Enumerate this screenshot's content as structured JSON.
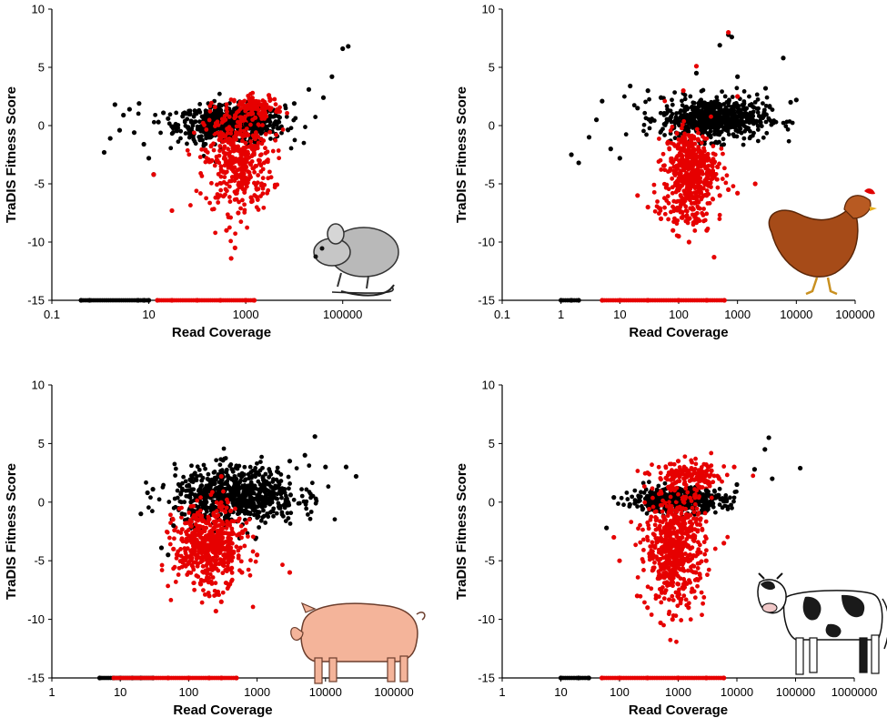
{
  "chart_data": [
    {
      "type": "scatter",
      "animal": "rat",
      "xlabel": "Read Coverage",
      "ylabel": "TraDIS Fitness Score",
      "x_scale": "log",
      "xlim": [
        0.1,
        1000000
      ],
      "x_ticks": [
        "0.1",
        "10",
        "1000",
        "100000"
      ],
      "ylim": [
        -15,
        10
      ],
      "y_ticks": [
        "-15",
        "-10",
        "-5",
        "0",
        "5",
        "10"
      ],
      "grid": false,
      "legend": "none",
      "colors": {
        "black": "#000000",
        "red": "#e60000"
      },
      "series": [
        {
          "color": "black",
          "points": [
            [
              1.2,
              -2.3
            ],
            [
              1.6,
              -1.1
            ],
            [
              2.0,
              1.8
            ],
            [
              2.5,
              -0.4
            ],
            [
              3.0,
              0.9
            ],
            [
              4.0,
              1.4
            ],
            [
              5.0,
              -0.6
            ],
            [
              6.3,
              1.9
            ],
            [
              7.9,
              -1.6
            ],
            [
              10,
              -2.8
            ],
            [
              12.6,
              -4.2
            ],
            [
              15.8,
              0.3
            ],
            [
              20,
              1.1
            ],
            [
              25,
              0.6
            ],
            [
              31.6,
              -0.2
            ],
            [
              50,
              0.8
            ],
            [
              100,
              1.2
            ],
            [
              200,
              -0.5
            ],
            [
              500,
              0.4
            ],
            [
              1000,
              0.1
            ],
            [
              2000,
              -0.3
            ],
            [
              5000,
              0.7
            ],
            [
              10000,
              1.9
            ],
            [
              20000,
              3.1
            ],
            [
              40000,
              2.4
            ],
            [
              60000,
              4.2
            ],
            [
              100000,
              6.6
            ],
            [
              130000,
              6.8
            ],
            [
              0.4,
              -15
            ],
            [
              0.6,
              -15
            ],
            [
              6,
              -15
            ],
            [
              8,
              -15
            ],
            [
              10,
              -15
            ]
          ]
        },
        {
          "color": "red",
          "points": [
            [
              12.6,
              -4.2
            ],
            [
              30,
              -7.3
            ],
            [
              200,
              -3.0
            ],
            [
              300,
              -6.0
            ],
            [
              400,
              -9.0
            ],
            [
              500,
              -11.4
            ],
            [
              600,
              -10.5
            ],
            [
              700,
              -7.5
            ],
            [
              800,
              -5.0
            ],
            [
              1000,
              -3.5
            ],
            [
              2000,
              1.8
            ],
            [
              3000,
              2.6
            ],
            [
              5000,
              1.2
            ],
            [
              15,
              -15
            ],
            [
              30,
              -15
            ],
            [
              100,
              -15
            ],
            [
              300,
              -15
            ],
            [
              1000,
              -15
            ],
            [
              1500,
              -15
            ]
          ]
        }
      ]
    },
    {
      "type": "scatter",
      "animal": "chicken",
      "xlabel": "Read Coverage",
      "ylabel": "TraDIS Fitness Score",
      "x_scale": "log",
      "xlim": [
        0.1,
        100000
      ],
      "x_ticks": [
        "0.1",
        "1",
        "10",
        "100",
        "1000",
        "10000",
        "100000"
      ],
      "ylim": [
        -15,
        10
      ],
      "y_ticks": [
        "-15",
        "-10",
        "-5",
        "0",
        "5",
        "10"
      ],
      "grid": false,
      "legend": "none",
      "colors": {
        "black": "#000000",
        "red": "#e60000"
      },
      "series": [
        {
          "color": "black",
          "points": [
            [
              1.5,
              -2.5
            ],
            [
              2,
              -3.2
            ],
            [
              3,
              -1.0
            ],
            [
              4,
              0.5
            ],
            [
              5,
              2.1
            ],
            [
              7,
              -2.0
            ],
            [
              10,
              -2.8
            ],
            [
              15,
              3.4
            ],
            [
              20,
              1.5
            ],
            [
              30,
              3.0
            ],
            [
              50,
              2.4
            ],
            [
              200,
              4.5
            ],
            [
              500,
              6.9
            ],
            [
              700,
              7.8
            ],
            [
              800,
              7.6
            ],
            [
              1000,
              4.2
            ],
            [
              3000,
              3.2
            ],
            [
              6000,
              5.8
            ],
            [
              8000,
              2.0
            ],
            [
              10000,
              2.2
            ],
            [
              1,
              -15
            ],
            [
              1.5,
              -15
            ],
            [
              2,
              -15
            ]
          ]
        },
        {
          "color": "red",
          "points": [
            [
              20,
              -6.0
            ],
            [
              30,
              -7.0
            ],
            [
              50,
              -8.0
            ],
            [
              80,
              -9.0
            ],
            [
              100,
              -9.5
            ],
            [
              150,
              -10.0
            ],
            [
              200,
              -8.0
            ],
            [
              300,
              -9.0
            ],
            [
              400,
              -11.3
            ],
            [
              500,
              -6.0
            ],
            [
              700,
              -5.5
            ],
            [
              1000,
              -5.8
            ],
            [
              2000,
              -5.0
            ],
            [
              700,
              8.0
            ],
            [
              120,
              3.0
            ],
            [
              200,
              5.1
            ],
            [
              1000,
              2.5
            ],
            [
              5,
              -15
            ],
            [
              10,
              -15
            ],
            [
              30,
              -15
            ],
            [
              100,
              -15
            ],
            [
              300,
              -15
            ],
            [
              600,
              -15
            ]
          ]
        }
      ]
    },
    {
      "type": "scatter",
      "animal": "pig",
      "xlabel": "Read Coverage",
      "ylabel": "TraDIS Fitness Score",
      "x_scale": "log",
      "xlim": [
        1,
        100000
      ],
      "x_ticks": [
        "1",
        "10",
        "100",
        "1000",
        "10000",
        "100000"
      ],
      "ylim": [
        -15,
        10
      ],
      "y_ticks": [
        "-15",
        "-10",
        "-5",
        "0",
        "5",
        "10"
      ],
      "grid": false,
      "legend": "none",
      "colors": {
        "black": "#000000",
        "red": "#e60000"
      },
      "series": [
        {
          "color": "black",
          "points": [
            [
              20,
              -1.0
            ],
            [
              25,
              0.8
            ],
            [
              30,
              1.1
            ],
            [
              40,
              -3.9
            ],
            [
              50,
              -4.5
            ],
            [
              60,
              -2.0
            ],
            [
              80,
              -1.0
            ],
            [
              100,
              0.5
            ],
            [
              300,
              2.0
            ],
            [
              1000,
              2.5
            ],
            [
              3000,
              3.5
            ],
            [
              5000,
              4.0
            ],
            [
              7000,
              5.6
            ],
            [
              10000,
              3.0
            ],
            [
              20000,
              3.0
            ],
            [
              28000,
              2.2
            ],
            [
              5,
              -15
            ],
            [
              10,
              -15
            ],
            [
              15,
              -15
            ],
            [
              20,
              -15
            ],
            [
              30,
              -15
            ]
          ]
        },
        {
          "color": "red",
          "points": [
            [
              60,
              -4.0
            ],
            [
              80,
              -5.0
            ],
            [
              100,
              -6.0
            ],
            [
              150,
              -7.0
            ],
            [
              200,
              -8.0
            ],
            [
              250,
              -9.3
            ],
            [
              300,
              -8.5
            ],
            [
              400,
              -7.0
            ],
            [
              600,
              -6.0
            ],
            [
              1000,
              -4.5
            ],
            [
              3000,
              -6.0
            ],
            [
              300,
              2.2
            ],
            [
              8,
              -15
            ],
            [
              50,
              -15
            ],
            [
              100,
              -15
            ],
            [
              200,
              -15
            ],
            [
              300,
              -15
            ],
            [
              500,
              -15
            ]
          ]
        }
      ]
    },
    {
      "type": "scatter",
      "animal": "cow",
      "xlabel": "Read Coverage",
      "ylabel": "TraDIS Fitness Score",
      "x_scale": "log",
      "xlim": [
        1,
        1000000
      ],
      "x_ticks": [
        "1",
        "10",
        "100",
        "1000",
        "10000",
        "100000",
        "1000000"
      ],
      "ylim": [
        -15,
        10
      ],
      "y_ticks": [
        "-15",
        "-10",
        "-5",
        "0",
        "5",
        "10"
      ],
      "grid": false,
      "legend": "none",
      "colors": {
        "black": "#000000",
        "red": "#e60000"
      },
      "series": [
        {
          "color": "black",
          "points": [
            [
              60,
              -2.2
            ],
            [
              80,
              0.4
            ],
            [
              150,
              -0.2
            ],
            [
              300,
              0.5
            ],
            [
              1000,
              0.3
            ],
            [
              3000,
              1.0
            ],
            [
              10000,
              1.5
            ],
            [
              20000,
              2.8
            ],
            [
              30000,
              4.5
            ],
            [
              35000,
              5.5
            ],
            [
              40000,
              2.0
            ],
            [
              120000,
              2.9
            ],
            [
              10,
              -15
            ],
            [
              20,
              -15
            ],
            [
              30,
              -15
            ]
          ]
        },
        {
          "color": "red",
          "points": [
            [
              80,
              -3.0
            ],
            [
              100,
              -5.0
            ],
            [
              200,
              -8.0
            ],
            [
              300,
              -9.0
            ],
            [
              500,
              -10.3
            ],
            [
              800,
              -10.0
            ],
            [
              1000,
              -7.0
            ],
            [
              1500,
              -9.0
            ],
            [
              2000,
              -6.0
            ],
            [
              3000,
              -5.0
            ],
            [
              6000,
              -3.5
            ],
            [
              300,
              2.5
            ],
            [
              1000,
              3.5
            ],
            [
              3000,
              3.2
            ],
            [
              5000,
              2.0
            ],
            [
              9000,
              3.0
            ],
            [
              50,
              -15
            ],
            [
              100,
              -15
            ],
            [
              300,
              -15
            ],
            [
              1000,
              -15
            ],
            [
              3000,
              -15
            ],
            [
              6000,
              -15
            ]
          ]
        }
      ]
    }
  ]
}
